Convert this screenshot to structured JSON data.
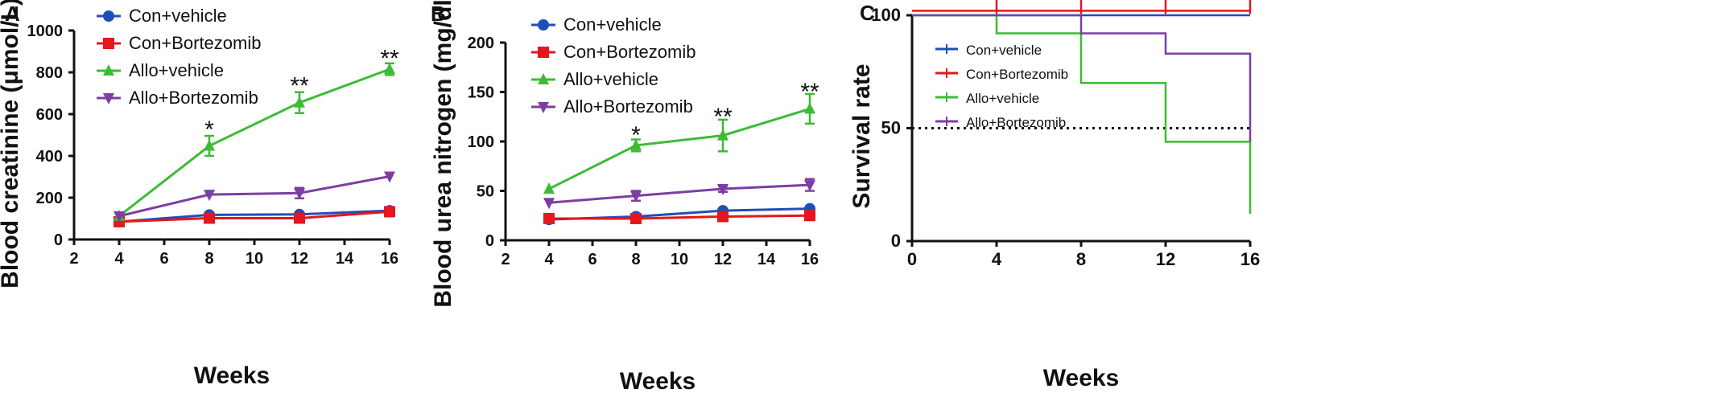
{
  "colors": {
    "con_vehicle": "#1f4fb5",
    "con_bortezomib": "#e3171d",
    "allo_vehicle": "#3dbb35",
    "allo_bortezomib": "#7c3ea3",
    "axis": "#111111"
  },
  "chart_data": [
    {
      "panel": "A",
      "type": "line",
      "xlabel": "Weeks",
      "ylabel": "Blood creatinine (μmol/L)",
      "xlim": [
        2,
        16
      ],
      "ylim": [
        0,
        1000
      ],
      "xticks": [
        2,
        4,
        6,
        8,
        10,
        12,
        14,
        16
      ],
      "yticks": [
        0,
        200,
        400,
        600,
        800,
        1000
      ],
      "legend_position": "top-left",
      "x": [
        4,
        8,
        12,
        16
      ],
      "series": [
        {
          "name": "Con+vehicle",
          "marker": "circle",
          "values": [
            85,
            118,
            120,
            138
          ],
          "errors": [
            5,
            8,
            8,
            8
          ]
        },
        {
          "name": "Con+Bortezomib",
          "marker": "square",
          "values": [
            85,
            102,
            102,
            133
          ],
          "errors": [
            5,
            8,
            8,
            8
          ]
        },
        {
          "name": "Allo+vehicle",
          "marker": "triangle-up",
          "values": [
            112,
            448,
            655,
            815
          ],
          "errors": [
            8,
            48,
            50,
            28
          ]
        },
        {
          "name": "Allo+Bortezomib",
          "marker": "triangle-down",
          "values": [
            112,
            215,
            222,
            302
          ],
          "errors": [
            8,
            10,
            25,
            10
          ]
        }
      ],
      "annotations": [
        {
          "x": 8,
          "y": 535,
          "text": "*"
        },
        {
          "x": 12,
          "y": 745,
          "text": "**"
        },
        {
          "x": 16,
          "y": 875,
          "text": "**"
        }
      ]
    },
    {
      "panel": "B",
      "type": "line",
      "xlabel": "Weeks",
      "ylabel": "Blood urea nitrogen (mg/dl)",
      "xlim": [
        2,
        16
      ],
      "ylim": [
        0,
        200
      ],
      "xticks": [
        2,
        4,
        6,
        8,
        10,
        12,
        14,
        16
      ],
      "yticks": [
        0,
        50,
        100,
        150,
        200
      ],
      "legend_position": "top-left",
      "x": [
        4,
        8,
        12,
        16
      ],
      "series": [
        {
          "name": "Con+vehicle",
          "marker": "circle",
          "values": [
            21,
            24,
            30,
            32
          ],
          "errors": [
            1,
            2,
            2,
            2
          ]
        },
        {
          "name": "Con+Bortezomib",
          "marker": "square",
          "values": [
            22,
            22,
            24,
            25
          ],
          "errors": [
            1,
            2,
            2,
            2
          ]
        },
        {
          "name": "Allo+vehicle",
          "marker": "triangle-up",
          "values": [
            52,
            96,
            106,
            133
          ],
          "errors": [
            2,
            6,
            16,
            15
          ]
        },
        {
          "name": "Allo+Bortezomib",
          "marker": "triangle-down",
          "values": [
            38,
            45,
            52,
            56
          ],
          "errors": [
            2,
            5,
            3,
            6
          ]
        }
      ],
      "annotations": [
        {
          "x": 8,
          "y": 108,
          "text": "*"
        },
        {
          "x": 12,
          "y": 127,
          "text": "**"
        },
        {
          "x": 16,
          "y": 152,
          "text": "**"
        }
      ]
    },
    {
      "panel": "C",
      "type": "step",
      "xlabel": "Weeks",
      "ylabel": "Survival rate",
      "xlim": [
        0,
        16
      ],
      "ylim": [
        0,
        100
      ],
      "xticks": [
        0,
        4,
        8,
        12,
        16
      ],
      "yticks": [
        0,
        50,
        100
      ],
      "legend_position": "top-left",
      "reference_line": 50,
      "series": [
        {
          "name": "Con+vehicle",
          "steps": [
            [
              0,
              100
            ],
            [
              16,
              100
            ]
          ],
          "censor_marks": []
        },
        {
          "name": "Con+Bortezomib",
          "steps": [
            [
              0,
              102
            ],
            [
              16,
              102
            ]
          ],
          "censor_marks": [
            4,
            8,
            12,
            16
          ]
        },
        {
          "name": "Allo+vehicle",
          "steps": [
            [
              0,
              100
            ],
            [
              4,
              100
            ],
            [
              4,
              92
            ],
            [
              8,
              92
            ],
            [
              8,
              70
            ],
            [
              12,
              70
            ],
            [
              12,
              44
            ],
            [
              16,
              44
            ],
            [
              16,
              12
            ]
          ],
          "censor_marks": []
        },
        {
          "name": "Allo+Bortezomib",
          "steps": [
            [
              0,
              100
            ],
            [
              8,
              100
            ],
            [
              8,
              92
            ],
            [
              12,
              92
            ],
            [
              12,
              83
            ],
            [
              16,
              83
            ],
            [
              16,
              44
            ]
          ],
          "censor_marks": []
        }
      ]
    }
  ]
}
